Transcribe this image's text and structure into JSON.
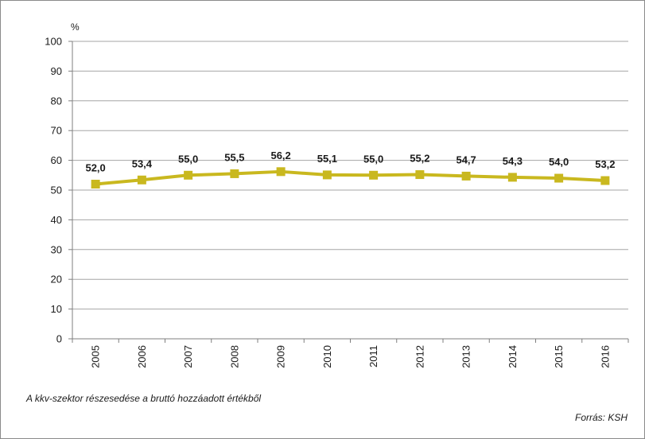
{
  "chart_data": {
    "type": "line",
    "unit_label": "%",
    "x": [
      "2005",
      "2006",
      "2007",
      "2008",
      "2009",
      "2010",
      "2011",
      "2012",
      "2013",
      "2014",
      "2015",
      "2016"
    ],
    "series": [
      {
        "values": [
          52.0,
          53.4,
          55.0,
          55.5,
          56.2,
          55.1,
          55.0,
          55.2,
          54.7,
          54.3,
          54.0,
          53.2
        ],
        "value_labels": [
          "52,0",
          "53,4",
          "55,0",
          "55,5",
          "56,2",
          "55,1",
          "55,0",
          "55,2",
          "54,7",
          "54,3",
          "54,0",
          "53,2"
        ],
        "color": "#c9b81f",
        "marker": "square"
      }
    ],
    "ylim": [
      0,
      100
    ],
    "yticks": [
      "0",
      "10",
      "20",
      "30",
      "40",
      "50",
      "60",
      "70",
      "80",
      "90",
      "100"
    ],
    "grid": true
  },
  "caption": "A kkv-szektor részesedése a bruttó hozzáadott értékből",
  "source": "Forrás: KSH"
}
